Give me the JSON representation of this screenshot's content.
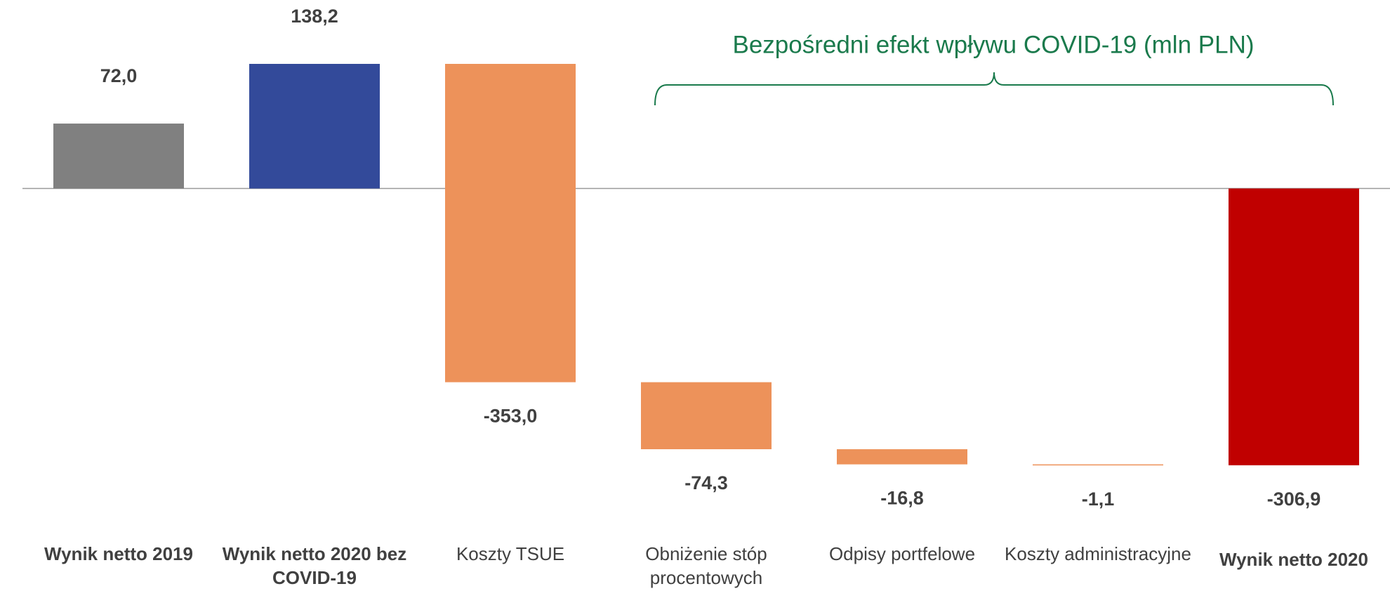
{
  "chart_data": {
    "type": "waterfall",
    "annotation": "Bezpośredni efekt wpływu COVID-19 (mln PLN)",
    "categories": [
      "Wynik netto 2019",
      "Wynik netto 2020 bez COVID-19",
      "Koszty TSUE",
      "Obniżenie stóp procentowych",
      "Odpisy portfelowe",
      "Koszty administracyjne",
      "Wynik netto 2020"
    ],
    "values": [
      72.0,
      138.2,
      -353.0,
      -74.3,
      -16.8,
      -1.1,
      -306.9
    ],
    "value_labels": [
      "72,0",
      "138,2",
      "-353,0",
      "-74,3",
      "-16,8",
      "-1,1",
      "-306,9"
    ],
    "measure": [
      "absolute",
      "absolute",
      "relative",
      "relative",
      "relative",
      "relative",
      "absolute"
    ],
    "colors": [
      "#808080",
      "#334a9a",
      "#ed925a",
      "#ed925a",
      "#ed925a",
      "#ed925a",
      "#c00000"
    ]
  }
}
